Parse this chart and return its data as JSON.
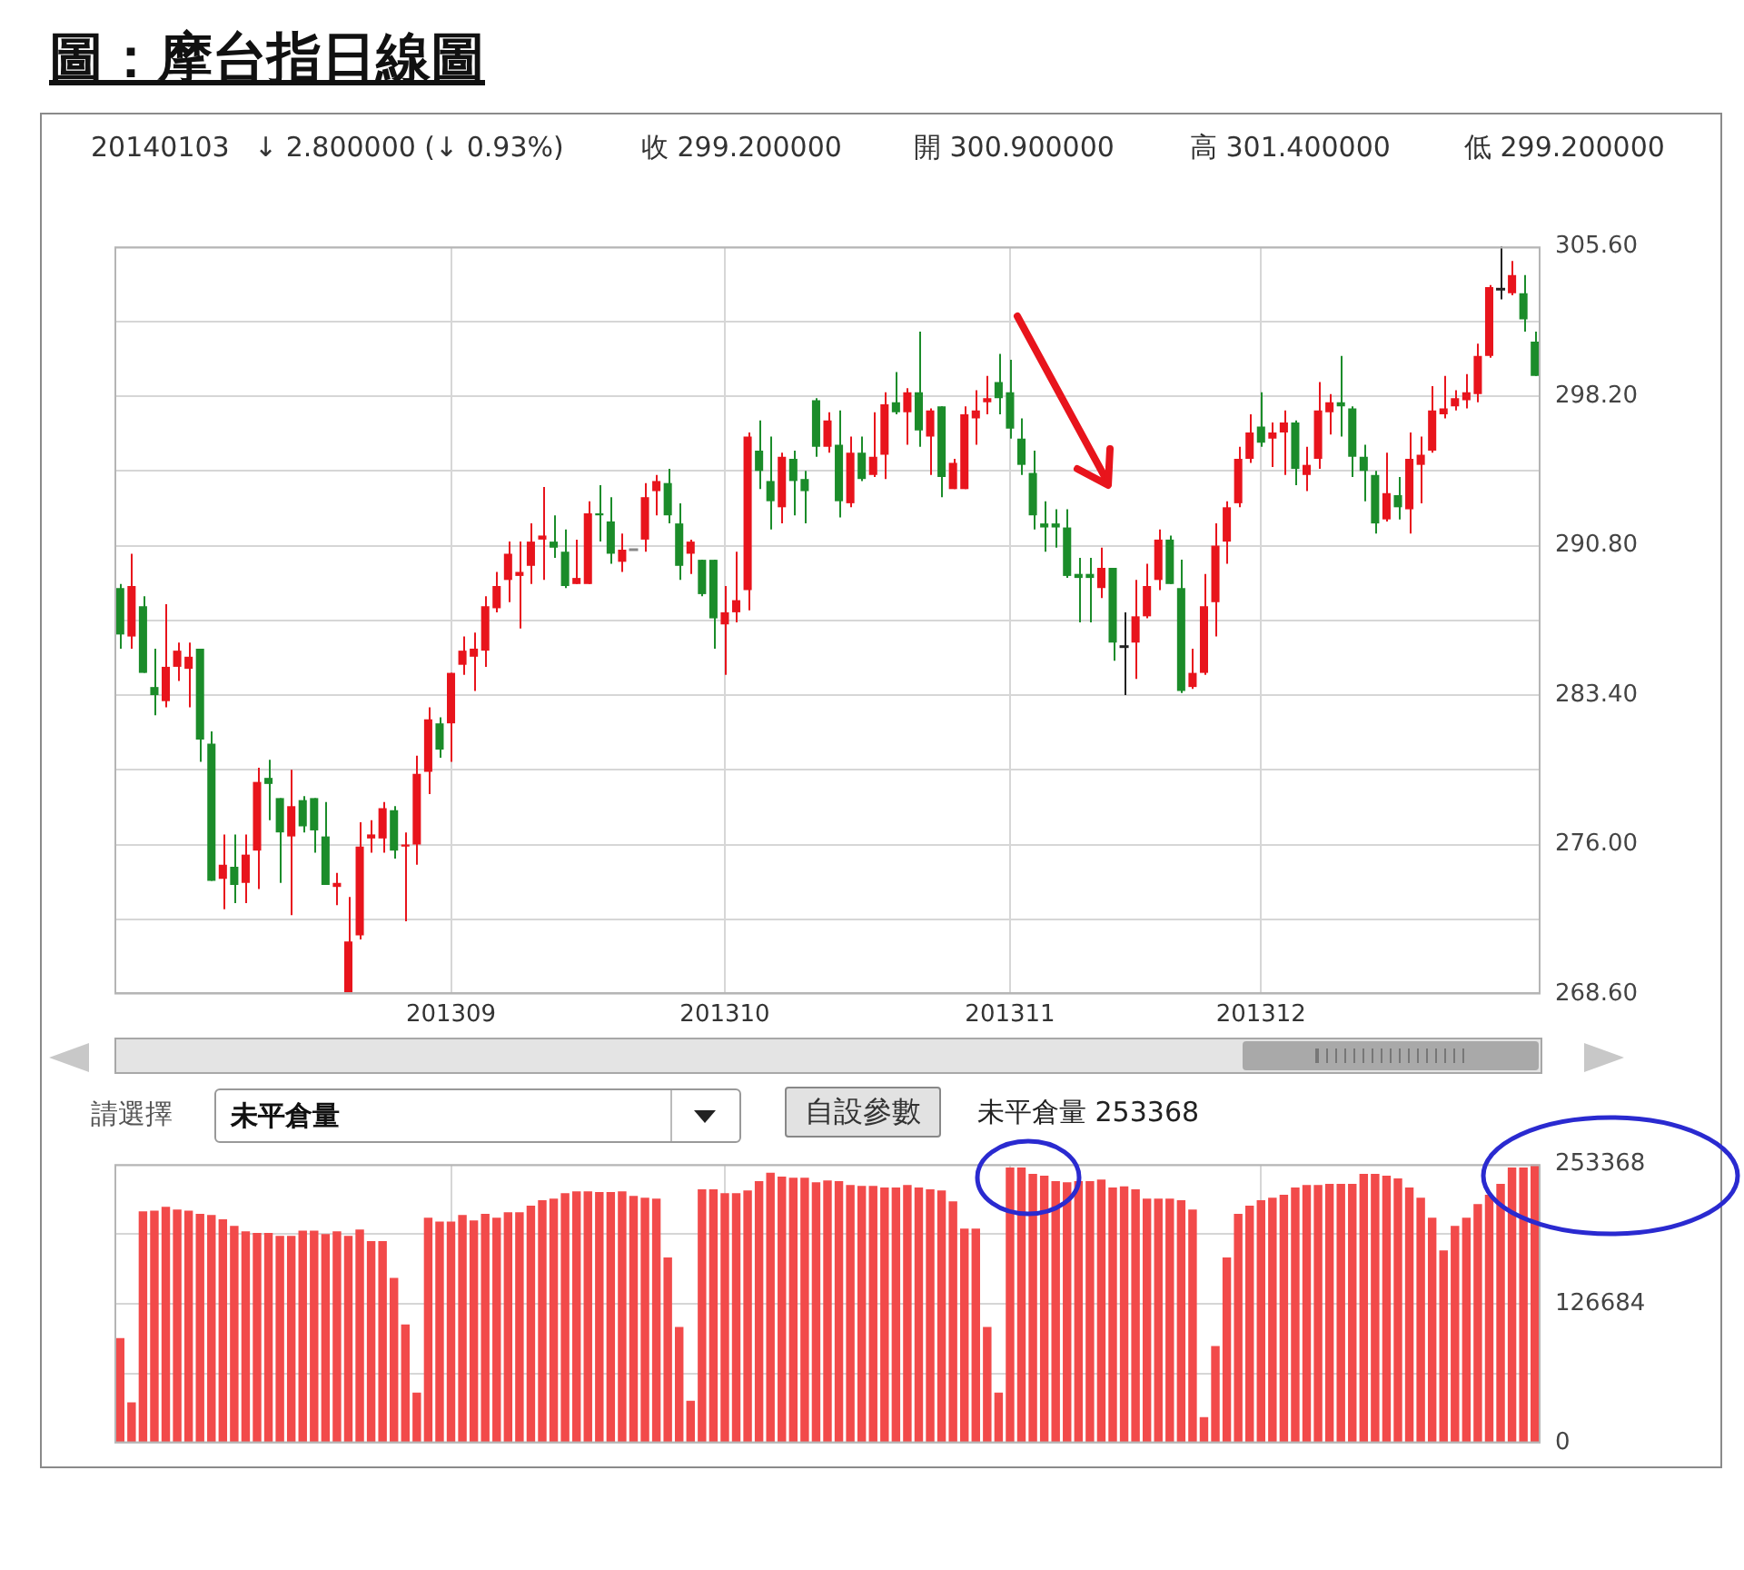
{
  "chart_data": [
    {
      "type": "candlestick",
      "title": "圖：摩台指日線圖",
      "annotations": [
        "20140103",
        "↓ 2.800000 (↓ 0.93%)",
        "收 299.200000",
        "開 300.900000",
        "高 301.400000",
        "低 299.200000"
      ],
      "categories": [
        null,
        null,
        null,
        null,
        null,
        null,
        null,
        null,
        null,
        null,
        null,
        null,
        null,
        null,
        null,
        null,
        null,
        null,
        null,
        null,
        null,
        null,
        null,
        null,
        null,
        null,
        null,
        null,
        null,
        "201309",
        null,
        null,
        null,
        null,
        null,
        null,
        null,
        null,
        null,
        null,
        null,
        null,
        null,
        null,
        null,
        null,
        null,
        null,
        null,
        null,
        null,
        null,
        null,
        "201310",
        null,
        null,
        null,
        null,
        null,
        null,
        null,
        null,
        null,
        null,
        null,
        null,
        null,
        null,
        null,
        null,
        null,
        null,
        null,
        null,
        null,
        null,
        null,
        null,
        "201311",
        null,
        null,
        null,
        null,
        null,
        null,
        null,
        null,
        null,
        null,
        null,
        null,
        null,
        null,
        null,
        null,
        null,
        null,
        null,
        null,
        null,
        "201312",
        null,
        null,
        null,
        null,
        null,
        null,
        null,
        null,
        null,
        null,
        null,
        null,
        null,
        null,
        null,
        null,
        null,
        null,
        null,
        null,
        null,
        null,
        null,
        null
      ],
      "ohlc": [
        [
          288.7,
          288.9,
          285.7,
          286.4
        ],
        [
          286.3,
          290.4,
          285.7,
          288.8
        ],
        [
          287.8,
          288.3,
          284.5,
          284.5
        ],
        [
          283.8,
          285.7,
          282.4,
          283.4
        ],
        [
          283.1,
          287.9,
          282.8,
          284.8
        ],
        [
          284.8,
          286.0,
          284.1,
          285.6
        ],
        [
          284.7,
          286.0,
          282.8,
          285.3
        ],
        [
          285.7,
          285.7,
          280.1,
          281.2
        ],
        [
          281.0,
          281.6,
          274.2,
          274.2
        ],
        [
          274.3,
          276.5,
          272.8,
          275.0
        ],
        [
          274.9,
          276.5,
          273.1,
          274.0
        ],
        [
          274.1,
          276.5,
          273.1,
          275.5
        ],
        [
          275.7,
          279.8,
          273.8,
          279.1
        ],
        [
          279.3,
          280.2,
          277.2,
          279.0
        ],
        [
          278.3,
          278.3,
          274.1,
          276.6
        ],
        [
          276.4,
          279.7,
          272.5,
          277.9
        ],
        [
          278.2,
          278.4,
          276.6,
          276.9
        ],
        [
          278.3,
          278.3,
          275.6,
          276.7
        ],
        [
          276.4,
          278.1,
          274.0,
          274.0
        ],
        [
          273.9,
          274.6,
          273.0,
          274.1
        ],
        [
          268.6,
          273.4,
          268.6,
          271.2
        ],
        [
          271.5,
          277.1,
          271.3,
          275.9
        ],
        [
          276.3,
          277.2,
          275.6,
          276.5
        ],
        [
          276.3,
          278.1,
          275.6,
          277.8
        ],
        [
          277.7,
          277.9,
          275.3,
          275.7
        ],
        [
          275.9,
          276.6,
          272.2,
          276.0
        ],
        [
          276.0,
          280.4,
          275.0,
          279.5
        ],
        [
          279.6,
          282.8,
          278.5,
          282.2
        ],
        [
          282.0,
          282.3,
          280.3,
          280.7
        ],
        [
          282.0,
          284.5,
          280.1,
          284.5
        ],
        [
          284.9,
          286.3,
          284.4,
          285.6
        ],
        [
          285.3,
          286.5,
          283.6,
          285.7
        ],
        [
          285.6,
          288.3,
          284.8,
          287.8
        ],
        [
          287.7,
          289.5,
          287.5,
          288.8
        ],
        [
          289.1,
          291.0,
          288.0,
          290.4
        ],
        [
          289.3,
          291.0,
          286.7,
          289.5
        ],
        [
          289.8,
          291.9,
          288.9,
          291.0
        ],
        [
          291.1,
          293.7,
          289.1,
          291.3
        ],
        [
          291.0,
          292.3,
          290.2,
          290.7
        ],
        [
          290.5,
          291.6,
          288.7,
          288.8
        ],
        [
          288.9,
          291.1,
          288.9,
          289.2
        ],
        [
          288.9,
          293.0,
          288.9,
          292.4
        ],
        [
          292.4,
          293.8,
          291.0,
          292.3
        ],
        [
          292.0,
          293.2,
          289.9,
          290.4
        ],
        [
          290.0,
          291.4,
          289.5,
          290.6
        ],
        [
          290.6,
          290.6,
          290.6,
          290.6
        ],
        [
          291.1,
          293.9,
          290.5,
          293.2
        ],
        [
          293.5,
          294.3,
          292.3,
          294.0
        ],
        [
          293.9,
          294.6,
          291.9,
          292.3
        ],
        [
          291.9,
          292.9,
          289.1,
          289.8
        ],
        [
          290.4,
          291.1,
          289.4,
          291.0
        ],
        [
          290.1,
          290.1,
          288.3,
          288.4
        ],
        [
          290.1,
          290.1,
          285.7,
          287.2
        ],
        [
          286.9,
          288.8,
          284.4,
          287.5
        ],
        [
          287.5,
          290.5,
          287.0,
          288.1
        ],
        [
          288.6,
          296.4,
          287.6,
          296.2
        ],
        [
          295.5,
          297.0,
          293.6,
          294.5
        ],
        [
          294.0,
          296.2,
          291.6,
          293.0
        ],
        [
          292.7,
          295.4,
          291.9,
          295.2
        ],
        [
          295.1,
          295.5,
          292.3,
          294.0
        ],
        [
          294.1,
          294.5,
          291.9,
          293.5
        ],
        [
          298.0,
          298.1,
          295.2,
          295.7
        ],
        [
          295.7,
          297.4,
          295.4,
          297.0
        ],
        [
          295.8,
          297.5,
          292.2,
          293.0
        ],
        [
          292.9,
          296.2,
          292.7,
          295.4
        ],
        [
          295.4,
          296.2,
          294.0,
          294.1
        ],
        [
          294.3,
          297.4,
          294.2,
          295.2
        ],
        [
          295.3,
          298.4,
          294.1,
          297.8
        ],
        [
          297.9,
          299.4,
          297.3,
          297.4
        ],
        [
          297.4,
          298.6,
          295.8,
          298.4
        ],
        [
          298.4,
          301.4,
          295.7,
          296.5
        ],
        [
          296.2,
          297.6,
          294.3,
          297.5
        ],
        [
          297.7,
          297.7,
          293.2,
          294.2
        ],
        [
          293.6,
          295.1,
          293.6,
          294.9
        ],
        [
          293.6,
          297.7,
          293.6,
          297.3
        ],
        [
          297.1,
          298.5,
          295.8,
          297.5
        ],
        [
          297.9,
          299.2,
          297.3,
          298.1
        ],
        [
          298.9,
          300.3,
          297.3,
          298.1
        ],
        [
          298.4,
          300.0,
          296.1,
          296.6
        ],
        [
          296.1,
          297.1,
          294.3,
          294.8
        ],
        [
          294.4,
          295.5,
          291.6,
          292.3
        ],
        [
          291.9,
          293.0,
          290.5,
          291.7
        ],
        [
          291.9,
          292.6,
          290.7,
          291.7
        ],
        [
          291.7,
          292.6,
          289.2,
          289.3
        ],
        [
          289.4,
          290.2,
          287.0,
          289.2
        ],
        [
          289.4,
          290.2,
          287.0,
          289.2
        ],
        [
          288.7,
          290.7,
          288.2,
          289.7
        ],
        [
          289.7,
          289.7,
          285.1,
          286.0
        ],
        [
          285.8,
          287.5,
          283.4,
          285.8
        ],
        [
          286.0,
          289.1,
          284.2,
          287.3
        ],
        [
          287.3,
          289.9,
          287.2,
          288.8
        ],
        [
          289.1,
          291.6,
          288.6,
          291.1
        ],
        [
          291.1,
          291.3,
          288.9,
          288.9
        ],
        [
          288.7,
          290.1,
          283.5,
          283.6
        ],
        [
          283.8,
          285.7,
          283.7,
          284.5
        ],
        [
          284.5,
          289.4,
          284.4,
          287.8
        ],
        [
          288.0,
          291.9,
          286.3,
          290.8
        ],
        [
          291.0,
          293.0,
          289.9,
          292.7
        ],
        [
          292.9,
          295.7,
          292.7,
          295.1
        ],
        [
          295.1,
          297.3,
          294.9,
          296.4
        ],
        [
          296.7,
          298.4,
          295.7,
          295.9
        ],
        [
          296.1,
          296.9,
          294.7,
          296.4
        ],
        [
          296.4,
          297.5,
          294.3,
          296.9
        ],
        [
          296.9,
          297.0,
          293.8,
          294.6
        ],
        [
          294.3,
          295.7,
          293.5,
          294.8
        ],
        [
          295.1,
          298.9,
          294.6,
          297.5
        ],
        [
          297.4,
          298.3,
          296.3,
          297.9
        ],
        [
          297.9,
          300.2,
          296.2,
          297.7
        ],
        [
          297.6,
          297.7,
          294.2,
          295.2
        ],
        [
          295.2,
          295.8,
          293.0,
          294.5
        ],
        [
          294.3,
          294.5,
          291.4,
          291.9
        ],
        [
          292.1,
          295.4,
          292.0,
          293.4
        ],
        [
          293.3,
          294.2,
          292.1,
          292.7
        ],
        [
          292.6,
          296.4,
          291.4,
          295.1
        ],
        [
          294.8,
          296.2,
          292.9,
          295.3
        ],
        [
          295.5,
          298.7,
          295.4,
          297.5
        ],
        [
          297.3,
          299.2,
          297.1,
          297.6
        ],
        [
          297.7,
          298.5,
          297.5,
          298.1
        ],
        [
          298.0,
          299.3,
          297.6,
          298.4
        ],
        [
          298.3,
          300.8,
          297.9,
          300.2
        ],
        [
          300.2,
          303.7,
          300.1,
          303.6
        ],
        [
          303.5,
          305.6,
          303.0,
          303.5
        ],
        [
          303.3,
          304.9,
          303.2,
          304.2
        ],
        [
          303.3,
          304.2,
          301.4,
          302.0
        ],
        [
          300.9,
          301.4,
          299.2,
          299.2
        ]
      ],
      "colors": [
        "#1b8c2a",
        "#e8141c",
        "#1b8c2a",
        "#1b8c2a",
        "#e8141c",
        "#e8141c",
        "#e8141c",
        "#1b8c2a",
        "#1b8c2a",
        "#e8141c",
        "#1b8c2a",
        "#e8141c",
        "#e8141c",
        "#1b8c2a",
        "#1b8c2a",
        "#e8141c",
        "#1b8c2a",
        "#1b8c2a",
        "#1b8c2a",
        "#e8141c",
        "#e8141c",
        "#e8141c",
        "#e8141c",
        "#e8141c",
        "#1b8c2a",
        "#e8141c",
        "#e8141c",
        "#e8141c",
        "#1b8c2a",
        "#e8141c",
        "#e8141c",
        "#e8141c",
        "#e8141c",
        "#e8141c",
        "#e8141c",
        "#e8141c",
        "#e8141c",
        "#e8141c",
        "#1b8c2a",
        "#1b8c2a",
        "#e8141c",
        "#e8141c",
        "#1b8c2a",
        "#1b8c2a",
        "#e8141c",
        "#888888",
        "#e8141c",
        "#e8141c",
        "#1b8c2a",
        "#1b8c2a",
        "#e8141c",
        "#1b8c2a",
        "#1b8c2a",
        "#e8141c",
        "#e8141c",
        "#e8141c",
        "#1b8c2a",
        "#1b8c2a",
        "#e8141c",
        "#1b8c2a",
        "#1b8c2a",
        "#1b8c2a",
        "#e8141c",
        "#1b8c2a",
        "#e8141c",
        "#1b8c2a",
        "#e8141c",
        "#e8141c",
        "#1b8c2a",
        "#e8141c",
        "#1b8c2a",
        "#e8141c",
        "#1b8c2a",
        "#e8141c",
        "#e8141c",
        "#e8141c",
        "#e8141c",
        "#1b8c2a",
        "#1b8c2a",
        "#1b8c2a",
        "#1b8c2a",
        "#1b8c2a",
        "#1b8c2a",
        "#1b8c2a",
        "#1b8c2a",
        "#1b8c2a",
        "#e8141c",
        "#1b8c2a",
        "#222222",
        "#e8141c",
        "#e8141c",
        "#e8141c",
        "#1b8c2a",
        "#1b8c2a",
        "#e8141c",
        "#e8141c",
        "#e8141c",
        "#e8141c",
        "#e8141c",
        "#e8141c",
        "#1b8c2a",
        "#e8141c",
        "#e8141c",
        "#1b8c2a",
        "#e8141c",
        "#e8141c",
        "#e8141c",
        "#1b8c2a",
        "#1b8c2a",
        "#1b8c2a",
        "#1b8c2a",
        "#e8141c",
        "#1b8c2a",
        "#e8141c",
        "#e8141c",
        "#e8141c",
        "#e8141c",
        "#e8141c",
        "#e8141c",
        "#e8141c",
        "#e8141c",
        "#222222",
        "#e8141c",
        "#1b8c2a",
        "#1b8c2a"
      ],
      "ylim": [
        268.6,
        305.6
      ],
      "yticks": [
        {
          "value": 268.6,
          "label": "268.60"
        },
        {
          "value": 272.3,
          "label": null
        },
        {
          "value": 276,
          "label": "276.00"
        },
        {
          "value": 279.7,
          "label": null
        },
        {
          "value": 283.4,
          "label": "283.40"
        },
        {
          "value": 287.1,
          "label": null
        },
        {
          "value": 290.8,
          "label": "290.80"
        },
        {
          "value": 294.5,
          "label": null
        },
        {
          "value": 298.2,
          "label": "298.20"
        },
        {
          "value": 301.9,
          "label": null
        },
        {
          "value": 305.6,
          "label": "305.60"
        }
      ],
      "grid": true,
      "legend": false
    },
    {
      "type": "bar",
      "annotations": [
        "請選擇",
        "未平倉量",
        "自設參數",
        "未平倉量 253368"
      ],
      "categories": [
        null,
        null,
        null,
        null,
        null,
        null,
        null,
        null,
        null,
        null,
        null,
        null,
        null,
        null,
        null,
        null,
        null,
        null,
        null,
        null,
        null,
        null,
        null,
        null,
        null,
        null,
        null,
        null,
        null,
        "201309",
        null,
        null,
        null,
        null,
        null,
        null,
        null,
        null,
        null,
        null,
        null,
        null,
        null,
        null,
        null,
        null,
        null,
        null,
        null,
        null,
        null,
        null,
        null,
        "201310",
        null,
        null,
        null,
        null,
        null,
        null,
        null,
        null,
        null,
        null,
        null,
        null,
        null,
        null,
        null,
        null,
        null,
        null,
        null,
        null,
        null,
        null,
        null,
        null,
        "201311",
        null,
        null,
        null,
        null,
        null,
        null,
        null,
        null,
        null,
        null,
        null,
        null,
        null,
        null,
        null,
        null,
        null,
        null,
        null,
        null,
        null,
        "201312",
        null,
        null,
        null,
        null,
        null,
        null,
        null,
        null,
        null,
        null,
        null,
        null,
        null,
        null,
        null,
        null,
        null,
        null,
        null,
        null,
        null,
        null,
        null,
        null
      ],
      "values": [
        95500,
        37000,
        210800,
        211300,
        214900,
        212300,
        211300,
        208500,
        207500,
        203500,
        197400,
        192600,
        191000,
        191000,
        188500,
        188500,
        193100,
        193100,
        190000,
        192600,
        188500,
        194100,
        183700,
        183700,
        150200,
        107900,
        45900,
        205000,
        201400,
        201400,
        207500,
        202400,
        208500,
        205000,
        209800,
        209800,
        215900,
        220900,
        222200,
        227300,
        228800,
        228800,
        228300,
        228300,
        228800,
        224700,
        223200,
        222200,
        168700,
        105700,
        38500,
        230800,
        230800,
        227300,
        227300,
        229800,
        238200,
        245800,
        242200,
        241200,
        241200,
        237200,
        238700,
        238200,
        234600,
        233900,
        233900,
        232300,
        232300,
        234600,
        232300,
        230800,
        229800,
        219900,
        195100,
        195100,
        105700,
        45900,
        250600,
        250600,
        244800,
        243200,
        238200,
        237200,
        238200,
        238200,
        239700,
        232300,
        233400,
        230800,
        222200,
        222200,
        222200,
        220900,
        212300,
        23600,
        88200,
        168700,
        208500,
        215900,
        220900,
        223200,
        225700,
        232300,
        234600,
        234600,
        235600,
        235600,
        235600,
        244800,
        244800,
        243200,
        240700,
        232300,
        223200,
        205000,
        175100,
        197400,
        205000,
        217400,
        225700,
        235600,
        250600,
        250600,
        253368
      ],
      "color": "#f24a4a",
      "ylim": [
        0,
        253368
      ],
      "yticks": [
        0,
        {
          "value": 63342,
          "label": null
        },
        126684,
        {
          "value": 190026,
          "label": null
        },
        253368
      ],
      "grid": true,
      "legend": false,
      "tick_labels": "y"
    }
  ]
}
